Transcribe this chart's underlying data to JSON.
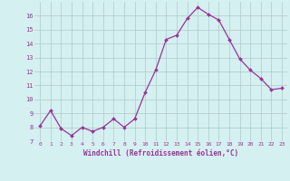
{
  "x": [
    0,
    1,
    2,
    3,
    4,
    5,
    6,
    7,
    8,
    9,
    10,
    11,
    12,
    13,
    14,
    15,
    16,
    17,
    18,
    19,
    20,
    21,
    22,
    23
  ],
  "y": [
    8.1,
    9.2,
    7.9,
    7.4,
    8.0,
    7.7,
    8.0,
    8.6,
    8.0,
    8.6,
    10.5,
    12.1,
    14.3,
    14.6,
    15.8,
    16.6,
    16.1,
    15.7,
    14.3,
    12.9,
    12.1,
    11.5,
    10.7,
    10.8
  ],
  "line_color": "#993399",
  "marker": "D",
  "marker_size": 2,
  "bg_color": "#d4f0f0",
  "grid_color": "#b0c8c8",
  "xlabel": "Windchill (Refroidissement éolien,°C)",
  "xlabel_color": "#993399",
  "tick_color": "#993399",
  "ylim": [
    7,
    17
  ],
  "xlim": [
    -0.5,
    23.5
  ],
  "yticks": [
    7,
    8,
    9,
    10,
    11,
    12,
    13,
    14,
    15,
    16
  ],
  "xticks": [
    0,
    1,
    2,
    3,
    4,
    5,
    6,
    7,
    8,
    9,
    10,
    11,
    12,
    13,
    14,
    15,
    16,
    17,
    18,
    19,
    20,
    21,
    22,
    23
  ]
}
